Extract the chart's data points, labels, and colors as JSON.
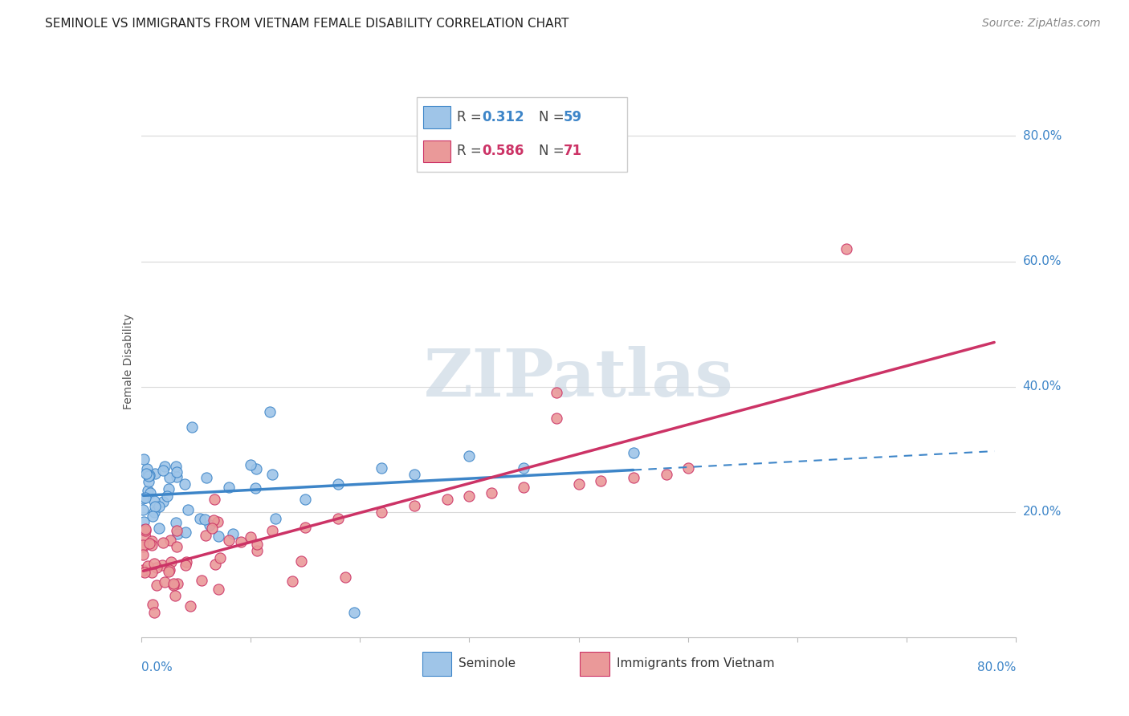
{
  "title": "SEMINOLE VS IMMIGRANTS FROM VIETNAM FEMALE DISABILITY CORRELATION CHART",
  "source": "Source: ZipAtlas.com",
  "ylabel": "Female Disability",
  "legend_blue_r": "0.312",
  "legend_blue_n": "59",
  "legend_pink_r": "0.586",
  "legend_pink_n": "71",
  "blue_color": "#9fc5e8",
  "pink_color": "#ea9999",
  "blue_line_color": "#3d85c8",
  "pink_line_color": "#cc3366",
  "blue_edge_color": "#3d85c8",
  "pink_edge_color": "#cc3366",
  "watermark_text": "ZIPatlas",
  "watermark_color": "#cdd9e5",
  "xlim": [
    0.0,
    0.8
  ],
  "ylim": [
    0.0,
    0.88
  ],
  "ytick_vals": [
    0.2,
    0.4,
    0.6,
    0.8
  ],
  "ytick_labels": [
    "20.0%",
    "40.0%",
    "60.0%",
    "80.0%"
  ],
  "xtick_labels": [
    "0.0%",
    "80.0%"
  ],
  "grid_color": "#d9d9d9",
  "background_color": "#ffffff",
  "title_fontsize": 11,
  "source_fontsize": 10,
  "legend_fontsize": 12,
  "axis_label_fontsize": 10,
  "tick_label_fontsize": 11,
  "blue_seed": 42,
  "pink_seed": 99
}
